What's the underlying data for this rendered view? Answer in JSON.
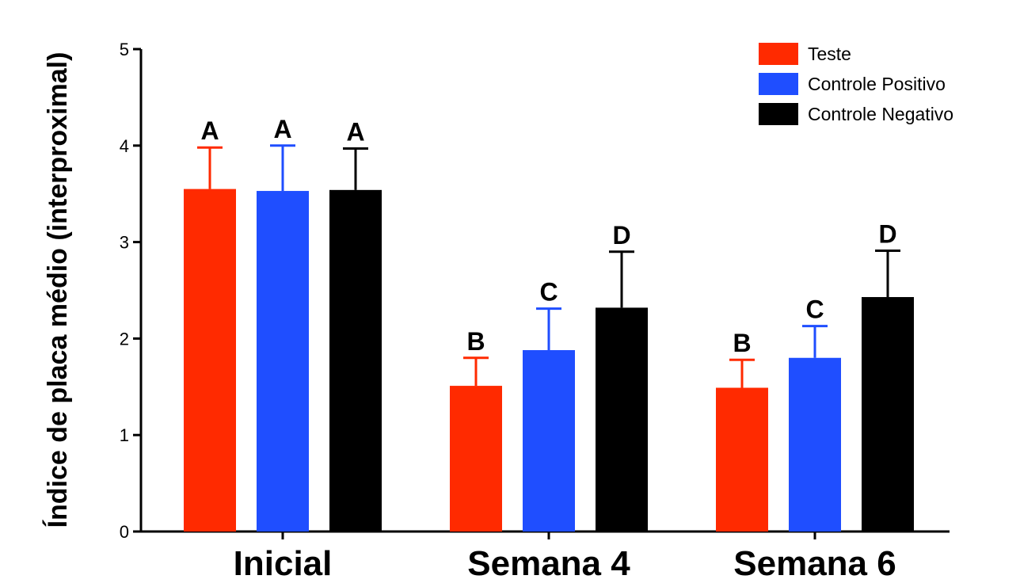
{
  "chart_data": {
    "type": "bar",
    "ylabel": "Índice de placa médio  (interproximal)",
    "xlabel": "",
    "ylim": [
      0,
      5
    ],
    "yticks": [
      "0",
      "1",
      "2",
      "3",
      "4",
      "5"
    ],
    "categories": [
      "Inicial",
      "Semana 4",
      "Semana 6"
    ],
    "series": [
      {
        "name": "Teste",
        "color": "#ff2a00",
        "values": [
          3.55,
          1.51,
          1.49
        ],
        "errors": [
          0.43,
          0.29,
          0.29
        ],
        "significance": [
          "A",
          "B",
          "B"
        ]
      },
      {
        "name": "Controle Positivo",
        "color": "#1f4eff",
        "values": [
          3.53,
          1.88,
          1.8
        ],
        "errors": [
          0.47,
          0.43,
          0.33
        ],
        "significance": [
          "A",
          "C",
          "C"
        ]
      },
      {
        "name": "Controle Negativo",
        "color": "#000000",
        "values": [
          3.54,
          2.32,
          2.43
        ],
        "errors": [
          0.43,
          0.58,
          0.48
        ],
        "significance": [
          "A",
          "D",
          "D"
        ]
      }
    ],
    "legend_position": "top-right",
    "grid": false
  }
}
